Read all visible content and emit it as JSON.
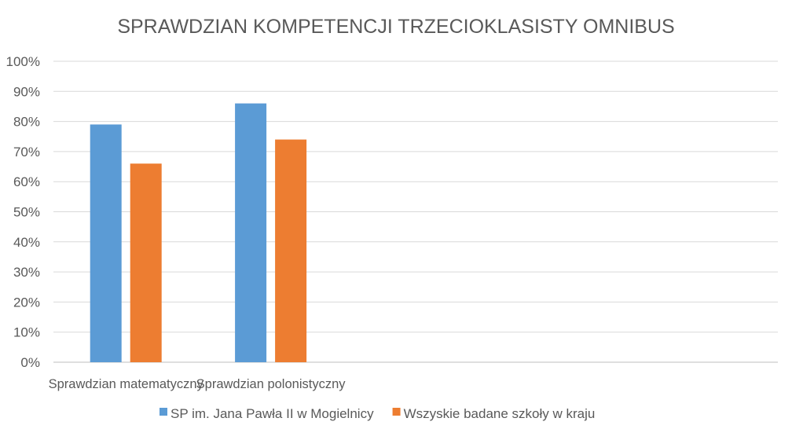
{
  "chart_data": {
    "type": "bar",
    "title": "SPRAWDZIAN KOMPETENCJI TRZECIOKLASISTY OMNIBUS",
    "categories": [
      "Sprawdzian matematyczny",
      "Sprawdzian polonistyczny",
      "",
      "",
      ""
    ],
    "series": [
      {
        "name": "SP im. Jana Pawła II w Mogielnicy",
        "values": [
          0.79,
          0.86,
          null,
          null,
          null
        ],
        "color": "#5b9bd5"
      },
      {
        "name": "Wszyskie badane szkoły w kraju",
        "values": [
          0.66,
          0.74,
          null,
          null,
          null
        ],
        "color": "#ed7d31"
      }
    ],
    "ylim": [
      0,
      1
    ],
    "yticks": [
      "0%",
      "10%",
      "20%",
      "30%",
      "40%",
      "50%",
      "60%",
      "70%",
      "80%",
      "90%",
      "100%"
    ],
    "grid": true,
    "legend": "bottom"
  }
}
